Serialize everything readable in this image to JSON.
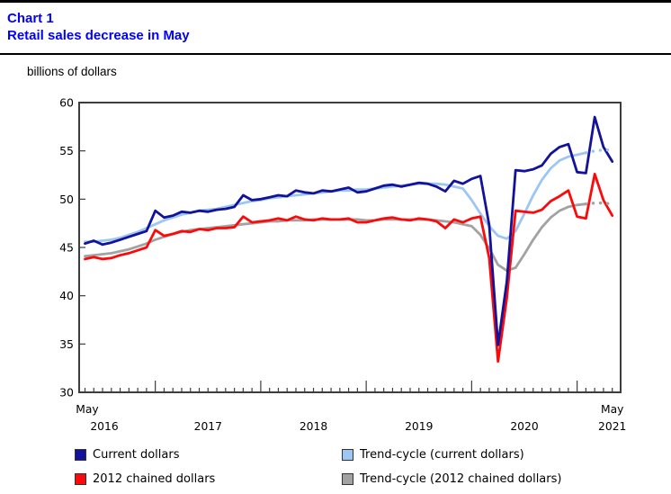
{
  "header": {
    "chart_label": "Chart 1",
    "title": "Retail sales decrease in May",
    "unit_label": "billions of dollars"
  },
  "chart_data": {
    "type": "line",
    "title": "Retail sales decrease in May",
    "ylabel": "billions of dollars",
    "frequency": "monthly",
    "x_range": "May 2016 to May 2021",
    "ylim": [
      30,
      60
    ],
    "yticks": [
      30,
      35,
      40,
      45,
      50,
      55,
      60
    ],
    "x_axis": {
      "start_label": {
        "month": "May",
        "year": "2016"
      },
      "mid_year_labels": [
        "2017",
        "2018",
        "2019",
        "2020"
      ],
      "end_label": {
        "month": "May",
        "year": "2021"
      }
    },
    "series": [
      {
        "name": "Current dollars",
        "color": "#12129a",
        "style": "solid",
        "values": [
          45.4,
          45.7,
          45.3,
          45.5,
          45.8,
          46.1,
          46.4,
          46.7,
          48.8,
          48.1,
          48.3,
          48.7,
          48.6,
          48.8,
          48.7,
          48.9,
          49.0,
          49.2,
          50.4,
          49.9,
          50.0,
          50.2,
          50.4,
          50.3,
          50.9,
          50.7,
          50.6,
          50.9,
          50.8,
          51.0,
          51.2,
          50.7,
          50.8,
          51.1,
          51.4,
          51.5,
          51.3,
          51.5,
          51.7,
          51.6,
          51.3,
          50.8,
          51.9,
          51.6,
          52.1,
          52.4,
          47.3,
          34.9,
          41.5,
          53.0,
          52.9,
          53.1,
          53.5,
          54.7,
          55.4,
          55.7,
          52.8,
          52.7,
          58.5,
          55.4,
          53.9
        ]
      },
      {
        "name": "2012 chained dollars",
        "color": "#fa0a0a",
        "style": "solid",
        "values": [
          43.8,
          44.0,
          43.8,
          43.9,
          44.2,
          44.4,
          44.7,
          45.0,
          46.8,
          46.2,
          46.4,
          46.7,
          46.6,
          46.9,
          46.8,
          47.0,
          47.0,
          47.1,
          48.2,
          47.6,
          47.7,
          47.8,
          48.0,
          47.8,
          48.2,
          47.9,
          47.8,
          48.0,
          47.9,
          47.9,
          48.0,
          47.6,
          47.6,
          47.8,
          48.0,
          48.1,
          47.9,
          47.8,
          48.0,
          47.9,
          47.7,
          47.0,
          47.9,
          47.6,
          48.0,
          48.2,
          43.9,
          33.2,
          39.8,
          48.8,
          48.7,
          48.6,
          48.9,
          49.8,
          50.3,
          50.9,
          48.2,
          48.0,
          52.6,
          49.9,
          48.3
        ]
      },
      {
        "name": "Trend-cycle (current dollars)",
        "color": "#9cc7f2",
        "style": "solid_then_dotted",
        "dotted_from_index": 57,
        "values": [
          45.6,
          45.6,
          45.7,
          45.8,
          46.0,
          46.3,
          46.6,
          47.0,
          47.4,
          47.8,
          48.1,
          48.4,
          48.6,
          48.8,
          48.9,
          49.0,
          49.2,
          49.4,
          49.6,
          49.8,
          49.9,
          50.1,
          50.2,
          50.3,
          50.4,
          50.5,
          50.6,
          50.7,
          50.8,
          50.9,
          50.9,
          51.0,
          51.0,
          51.1,
          51.2,
          51.3,
          51.4,
          51.5,
          51.6,
          51.6,
          51.6,
          51.5,
          51.3,
          51.1,
          49.9,
          48.5,
          47.2,
          46.2,
          45.9,
          46.7,
          48.5,
          50.4,
          52.0,
          53.2,
          54.0,
          54.4,
          54.6,
          54.8,
          55.0,
          55.1,
          55.1
        ]
      },
      {
        "name": "Trend-cycle (2012 chained dollars)",
        "color": "#a2a2a2",
        "style": "solid_then_dotted",
        "dotted_from_index": 57,
        "values": [
          44.1,
          44.2,
          44.3,
          44.4,
          44.6,
          44.8,
          45.1,
          45.4,
          45.8,
          46.1,
          46.4,
          46.6,
          46.8,
          46.9,
          47.0,
          47.1,
          47.2,
          47.3,
          47.4,
          47.5,
          47.6,
          47.7,
          47.7,
          47.8,
          47.8,
          47.8,
          47.9,
          47.9,
          47.9,
          47.9,
          47.9,
          47.9,
          47.8,
          47.8,
          47.9,
          47.9,
          47.9,
          47.9,
          47.9,
          47.9,
          47.8,
          47.7,
          47.6,
          47.4,
          47.2,
          46.3,
          44.9,
          43.2,
          42.6,
          42.9,
          44.3,
          45.8,
          47.1,
          48.1,
          48.8,
          49.2,
          49.4,
          49.5,
          49.6,
          49.6,
          49.5
        ]
      }
    ],
    "legend": [
      {
        "label": "Current dollars",
        "color": "#12129a"
      },
      {
        "label": "2012 chained dollars",
        "color": "#fa0a0a"
      },
      {
        "label": "Trend-cycle (current dollars)",
        "color": "#9cc7f2"
      },
      {
        "label": "Trend-cycle (2012 chained dollars)",
        "color": "#a2a2a2"
      }
    ],
    "legend_position": "bottom"
  }
}
